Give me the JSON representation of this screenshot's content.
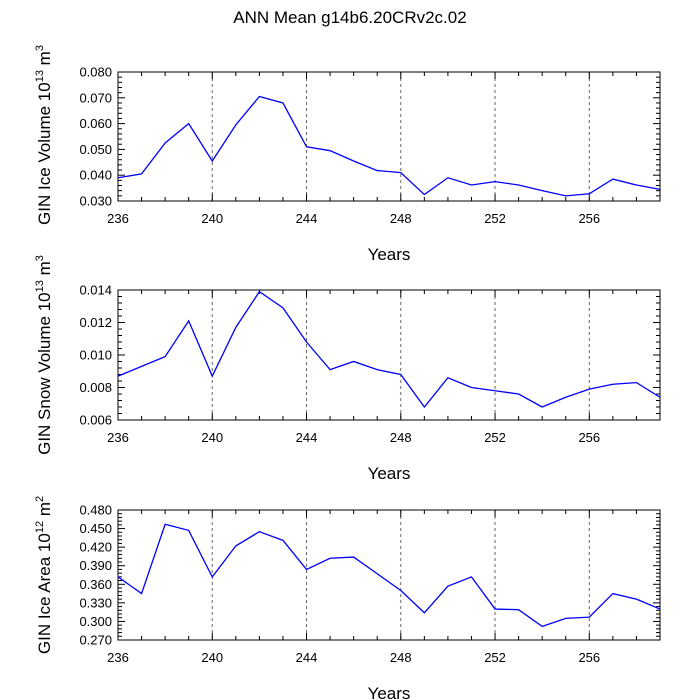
{
  "figure": {
    "title": "ANN Mean g14b6.20CRv2c.02"
  },
  "chart_data": [
    {
      "type": "line",
      "title": "",
      "xlabel": "Years",
      "ylabel": "GIN Ice Volume",
      "ylabel_exp_base": "10",
      "ylabel_exp": "13",
      "ylabel_unit": "m",
      "ylabel_unit_exp": "3",
      "xlim": [
        236,
        259
      ],
      "ylim": [
        0.03,
        0.08
      ],
      "xticks": [
        "236",
        "240",
        "244",
        "248",
        "252",
        "256"
      ],
      "yticks": [
        "0.030",
        "0.040",
        "0.050",
        "0.060",
        "0.070",
        "0.080"
      ],
      "x": [
        236,
        237,
        238,
        239,
        240,
        241,
        242,
        243,
        244,
        245,
        246,
        247,
        248,
        249,
        250,
        251,
        252,
        253,
        254,
        255,
        256,
        257,
        258,
        259
      ],
      "series": [
        {
          "name": "GIN Ice Volume",
          "color": "#0000ff",
          "values": [
            0.039,
            0.0405,
            0.0525,
            0.06,
            0.0455,
            0.0595,
            0.0705,
            0.068,
            0.051,
            0.0495,
            0.0455,
            0.0418,
            0.041,
            0.0325,
            0.039,
            0.0362,
            0.0375,
            0.0362,
            0.034,
            0.032,
            0.0328,
            0.0385,
            0.0362,
            0.0345
          ]
        }
      ]
    },
    {
      "type": "line",
      "title": "",
      "xlabel": "Years",
      "ylabel": "GIN Snow Volume",
      "ylabel_exp_base": "10",
      "ylabel_exp": "13",
      "ylabel_unit": "m",
      "ylabel_unit_exp": "3",
      "xlim": [
        236,
        259
      ],
      "ylim": [
        0.006,
        0.014
      ],
      "xticks": [
        "236",
        "240",
        "244",
        "248",
        "252",
        "256"
      ],
      "yticks": [
        "0.006",
        "0.008",
        "0.010",
        "0.012",
        "0.014"
      ],
      "x": [
        236,
        237,
        238,
        239,
        240,
        241,
        242,
        243,
        244,
        245,
        246,
        247,
        248,
        249,
        250,
        251,
        252,
        253,
        254,
        255,
        256,
        257,
        258,
        259
      ],
      "series": [
        {
          "name": "GIN Snow Volume",
          "color": "#0000ff",
          "values": [
            0.0087,
            0.0093,
            0.0099,
            0.0121,
            0.0087,
            0.0117,
            0.0139,
            0.0129,
            0.0108,
            0.0091,
            0.0096,
            0.0091,
            0.0088,
            0.0068,
            0.0086,
            0.008,
            0.0078,
            0.0076,
            0.0068,
            0.0074,
            0.0079,
            0.0082,
            0.0083,
            0.0074
          ]
        }
      ]
    },
    {
      "type": "line",
      "title": "",
      "xlabel": "Years",
      "ylabel": "GIN Ice Area",
      "ylabel_exp_base": "10",
      "ylabel_exp": "12",
      "ylabel_unit": "m",
      "ylabel_unit_exp": "2",
      "xlim": [
        236,
        259
      ],
      "ylim": [
        0.27,
        0.48
      ],
      "xticks": [
        "236",
        "240",
        "244",
        "248",
        "252",
        "256"
      ],
      "yticks": [
        "0.270",
        "0.300",
        "0.330",
        "0.360",
        "0.390",
        "0.420",
        "0.450",
        "0.480"
      ],
      "x": [
        236,
        237,
        238,
        239,
        240,
        241,
        242,
        243,
        244,
        245,
        246,
        247,
        248,
        249,
        250,
        251,
        252,
        253,
        254,
        255,
        256,
        257,
        258,
        259
      ],
      "series": [
        {
          "name": "GIN Ice Area",
          "color": "#0000ff",
          "values": [
            0.372,
            0.345,
            0.457,
            0.447,
            0.372,
            0.422,
            0.445,
            0.431,
            0.384,
            0.402,
            0.404,
            0.377,
            0.35,
            0.314,
            0.357,
            0.372,
            0.32,
            0.319,
            0.292,
            0.305,
            0.307,
            0.345,
            0.336,
            0.32
          ]
        }
      ]
    }
  ]
}
